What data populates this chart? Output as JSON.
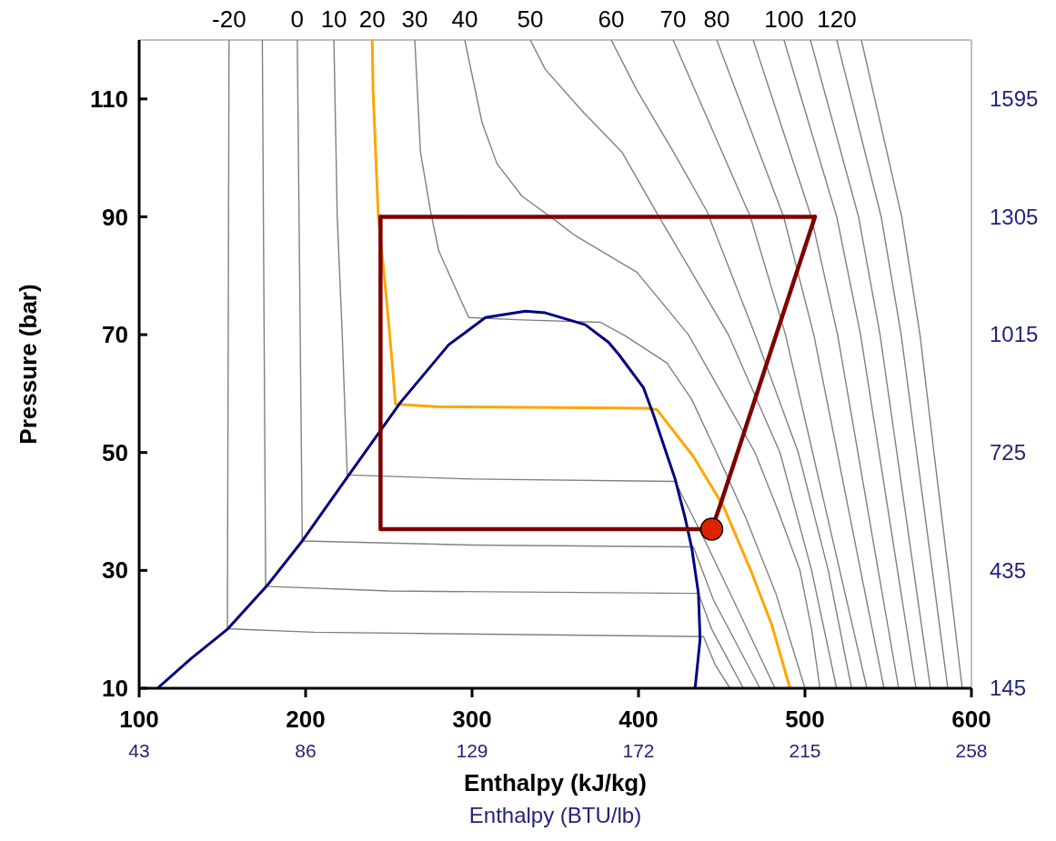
{
  "chart_data": {
    "type": "line",
    "xlabel": "Enthalpy  (kJ/kg)",
    "ylabel": "Pressure  (bar)",
    "x2label": "Enthalpy (BTU/lb)",
    "xlim": [
      100,
      600
    ],
    "xticks": [
      100,
      200,
      300,
      400,
      500,
      600
    ],
    "ylim": [
      10,
      120
    ],
    "yticks": [
      10,
      30,
      50,
      70,
      90,
      110
    ],
    "x2lim": [
      43,
      258
    ],
    "x2ticks": [
      43,
      86,
      129,
      172,
      215,
      258
    ],
    "y2lim": [
      145,
      1740
    ],
    "y2ticks": [
      145,
      435,
      725,
      1015,
      1305,
      1595
    ],
    "series": [
      {
        "name": "-20",
        "color": "#808080",
        "x": [
          154,
          153,
          205,
          433,
          439,
          446,
          455
        ],
        "values": [
          120,
          20.1,
          19.5,
          18.8,
          18.8,
          14,
          10
        ]
      },
      {
        "color": "#808080",
        "x": [
          174,
          176,
          250,
          436,
          444,
          463
        ],
        "values": [
          120,
          27.3,
          26.5,
          26.1,
          20,
          10
        ]
      },
      {
        "name": "0",
        "color": "#808080",
        "x": [
          195,
          198,
          300,
          433,
          445,
          473
        ],
        "values": [
          120,
          35,
          34.3,
          34,
          25,
          10
        ]
      },
      {
        "name": "10",
        "color": "#808080",
        "x": [
          217,
          219,
          222,
          225,
          300,
          422,
          440,
          462,
          482
        ],
        "values": [
          120,
          90,
          70,
          46.2,
          45.5,
          45.1,
          35,
          22,
          10
        ]
      },
      {
        "name": "30",
        "color": "#808080",
        "x": [
          265.6,
          269,
          275,
          280,
          298,
          330,
          377,
          392,
          417,
          432,
          448,
          464.5,
          482.5,
          500
        ],
        "values": [
          120,
          101,
          91,
          84.2,
          72.9,
          72.5,
          72.1,
          69.8,
          65.2,
          59,
          49.3,
          38.9,
          26.1,
          10
        ]
      },
      {
        "name": "40",
        "color": "#808080",
        "x": [
          295.6,
          306,
          315,
          330,
          350,
          362,
          399,
          430,
          450,
          470,
          484,
          497,
          504,
          509
        ],
        "values": [
          120,
          106,
          99,
          93.5,
          89.4,
          86.8,
          80.6,
          70,
          60,
          50,
          40,
          30,
          20,
          10
        ]
      },
      {
        "name": "50",
        "color": "#808080",
        "x": [
          335,
          344,
          366,
          390,
          411.5,
          454,
          485,
          504,
          519
        ],
        "values": [
          120,
          115,
          108,
          101,
          90.4,
          70,
          50,
          30,
          10
        ]
      },
      {
        "name": "60",
        "color": "#808080",
        "x": [
          383.6,
          399,
          421,
          441,
          470,
          496,
          514,
          528
        ],
        "values": [
          120,
          111.5,
          101,
          91,
          70,
          50,
          30,
          10
        ]
      },
      {
        "name": "70",
        "color": "#808080",
        "x": [
          420.8,
          467.2,
          488.3,
          504.6,
          520.9,
          537.2
        ],
        "values": [
          120,
          90,
          70,
          50,
          30,
          10
        ]
      },
      {
        "name": "80",
        "color": "#808080",
        "x": [
          447,
          487.2,
          505.3,
          519.4,
          533.4,
          547.5
        ],
        "values": [
          120,
          90,
          70,
          50,
          30,
          10
        ]
      },
      {
        "color": "#808080",
        "x": [
          468.9,
          503.8,
          519.6,
          531.8,
          544,
          556.3
        ],
        "values": [
          120,
          90,
          70,
          50,
          30,
          10
        ]
      },
      {
        "name": "100",
        "color": "#808080",
        "x": [
          487.4,
          519.1,
          533.4,
          544.5,
          555.6,
          566.7
        ],
        "values": [
          120,
          90,
          70,
          50,
          30,
          10
        ]
      },
      {
        "color": "#808080",
        "x": [
          503.3,
          532.2,
          545.1,
          555.2,
          565.3,
          575.4
        ],
        "values": [
          120,
          90,
          70,
          50,
          30,
          10
        ]
      },
      {
        "name": "120",
        "color": "#808080",
        "x": [
          519.1,
          545.8,
          557.8,
          567.1,
          576.5,
          585.8
        ],
        "values": [
          120,
          90,
          70,
          50,
          30,
          10
        ]
      },
      {
        "color": "#808080",
        "x": [
          533.9,
          558.1,
          569.1,
          577.5,
          586.1,
          594.5
        ],
        "values": [
          120,
          90,
          70,
          50,
          30,
          10
        ]
      },
      {
        "name": "20",
        "color": "#ffa500",
        "x": [
          240,
          240.5,
          243.7,
          248.6,
          252,
          254,
          278,
          405,
          411,
          433,
          451,
          468,
          480,
          491
        ],
        "values": [
          120,
          111.5,
          90,
          76,
          65.2,
          58.2,
          57.8,
          57.5,
          57.3,
          49.3,
          40.9,
          29.6,
          20.8,
          10
        ]
      },
      {
        "color": "#000080",
        "x": [
          111,
          131,
          153,
          176.5,
          198,
          226,
          257,
          286,
          308,
          332,
          344,
          368,
          382,
          388,
          403,
          409,
          422,
          428,
          432,
          436,
          437,
          434
        ],
        "values": [
          10,
          15,
          20,
          27.3,
          35,
          46.2,
          58.5,
          68.3,
          72.9,
          74,
          73.7,
          71.7,
          68.7,
          66.7,
          61,
          56.4,
          45.5,
          38.9,
          33.8,
          26.1,
          18.3,
          10
        ]
      },
      {
        "color": "#800000",
        "x": [
          245,
          506
        ],
        "values": [
          90,
          90
        ]
      },
      {
        "color": "#800000",
        "x": [
          245,
          245,
          444,
          449,
          506
        ],
        "values": [
          90,
          37,
          37,
          41,
          90
        ]
      },
      {
        "type": "scatter",
        "marker": "circle",
        "color": "#dd2200",
        "x": [
          444
        ],
        "values": [
          37
        ]
      }
    ]
  }
}
